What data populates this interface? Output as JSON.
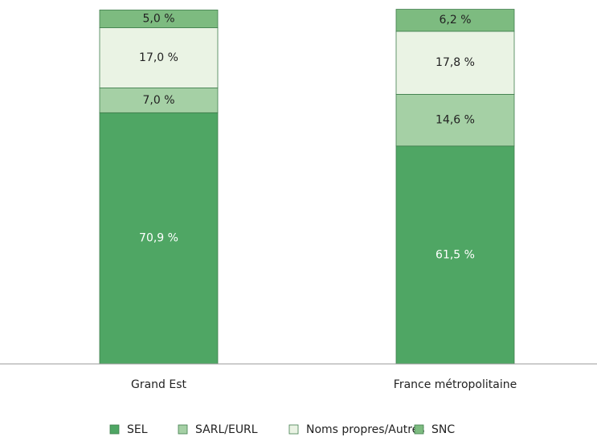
{
  "chart_data": {
    "type": "stacked_bar",
    "categories": [
      "Grand Est",
      "France métropolitaine"
    ],
    "series": [
      {
        "name": "SEL",
        "color": "#4fa664",
        "values": [
          70.9,
          61.5
        ],
        "value_labels": [
          "70,9 %",
          "61,5 %"
        ]
      },
      {
        "name": "SARL/EURL",
        "color": "#a5d0a5",
        "values": [
          7.0,
          14.6
        ],
        "value_labels": [
          "7,0 %",
          "14,6 %"
        ]
      },
      {
        "name": "Noms propres/Autres",
        "color": "#eaf3e4",
        "values": [
          17.0,
          17.8
        ],
        "value_labels": [
          "17,0 %",
          "17,8 %"
        ]
      },
      {
        "name": "SNC",
        "color": "#7dbb80",
        "values": [
          5.0,
          6.2
        ],
        "value_labels": [
          "5,0 %",
          "6,2 %"
        ]
      }
    ],
    "ylim": [
      0,
      100
    ],
    "legend": "bottom"
  }
}
